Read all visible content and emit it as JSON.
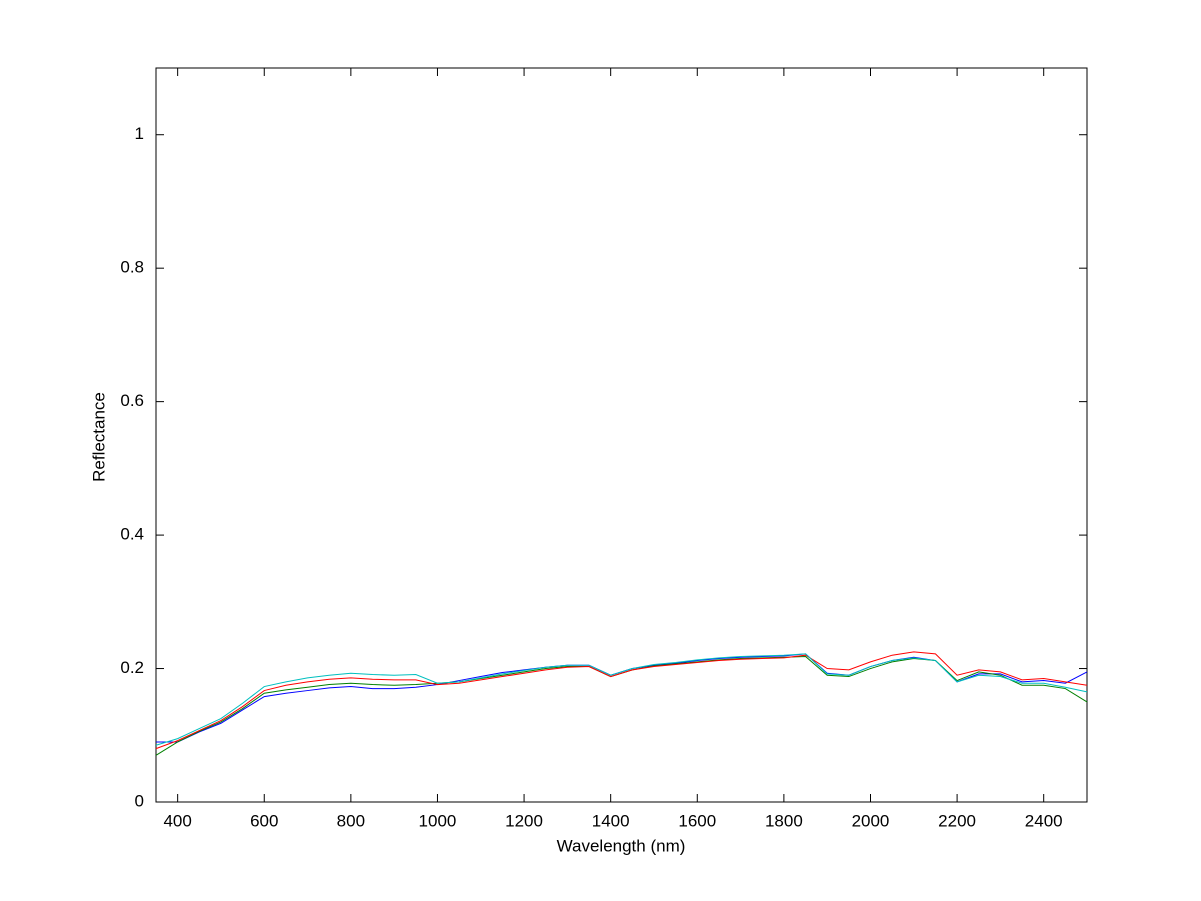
{
  "chart_data": {
    "type": "line",
    "x_label": "Wavelength (nm)",
    "y_label": "Reflectance",
    "x": [
      350,
      400,
      450,
      500,
      550,
      600,
      650,
      700,
      750,
      800,
      850,
      900,
      950,
      1000,
      1050,
      1100,
      1150,
      1200,
      1250,
      1300,
      1350,
      1400,
      1450,
      1500,
      1550,
      1600,
      1650,
      1700,
      1750,
      1800,
      1850,
      1900,
      1950,
      2000,
      2050,
      2100,
      2150,
      2200,
      2250,
      2300,
      2350,
      2400,
      2450,
      2500
    ],
    "series": [
      {
        "color": "#0000ff",
        "values": [
          0.09,
          0.09,
          0.105,
          0.118,
          0.138,
          0.158,
          0.163,
          0.167,
          0.171,
          0.173,
          0.17,
          0.17,
          0.172,
          0.176,
          0.182,
          0.188,
          0.194,
          0.198,
          0.202,
          0.205,
          0.205,
          0.19,
          0.2,
          0.205,
          0.208,
          0.212,
          0.215,
          0.217,
          0.218,
          0.219,
          0.222,
          0.193,
          0.19,
          0.203,
          0.212,
          0.217,
          0.212,
          0.18,
          0.192,
          0.192,
          0.18,
          0.182,
          0.178,
          0.195
        ]
      },
      {
        "color": "#008000",
        "values": [
          0.07,
          0.09,
          0.106,
          0.12,
          0.14,
          0.163,
          0.168,
          0.172,
          0.176,
          0.178,
          0.176,
          0.175,
          0.176,
          0.178,
          0.18,
          0.185,
          0.19,
          0.195,
          0.2,
          0.203,
          0.203,
          0.188,
          0.198,
          0.204,
          0.207,
          0.21,
          0.213,
          0.215,
          0.216,
          0.217,
          0.218,
          0.19,
          0.188,
          0.2,
          0.21,
          0.215,
          0.212,
          0.182,
          0.195,
          0.19,
          0.175,
          0.175,
          0.17,
          0.15
        ]
      },
      {
        "color": "#ff0000",
        "values": [
          0.08,
          0.092,
          0.107,
          0.122,
          0.143,
          0.167,
          0.175,
          0.18,
          0.184,
          0.186,
          0.184,
          0.183,
          0.183,
          0.176,
          0.178,
          0.183,
          0.188,
          0.193,
          0.198,
          0.202,
          0.203,
          0.188,
          0.198,
          0.203,
          0.206,
          0.209,
          0.212,
          0.214,
          0.215,
          0.216,
          0.22,
          0.2,
          0.198,
          0.21,
          0.22,
          0.225,
          0.222,
          0.19,
          0.198,
          0.195,
          0.183,
          0.185,
          0.18,
          0.175
        ]
      },
      {
        "color": "#00bfbf",
        "values": [
          0.085,
          0.095,
          0.11,
          0.125,
          0.148,
          0.173,
          0.18,
          0.186,
          0.19,
          0.193,
          0.191,
          0.19,
          0.191,
          0.178,
          0.18,
          0.186,
          0.192,
          0.197,
          0.202,
          0.205,
          0.205,
          0.19,
          0.2,
          0.206,
          0.209,
          0.213,
          0.216,
          0.218,
          0.219,
          0.22,
          0.222,
          0.192,
          0.19,
          0.203,
          0.212,
          0.216,
          0.212,
          0.18,
          0.19,
          0.188,
          0.178,
          0.178,
          0.172,
          0.165
        ]
      }
    ],
    "xlim": [
      350,
      2500
    ],
    "ylim": [
      0,
      1.1
    ],
    "xticks": [
      400,
      600,
      800,
      1000,
      1200,
      1400,
      1600,
      1800,
      2000,
      2200,
      2400
    ],
    "yticks": [
      0,
      0.2,
      0.4,
      0.6,
      0.8,
      1
    ],
    "grid": false
  }
}
